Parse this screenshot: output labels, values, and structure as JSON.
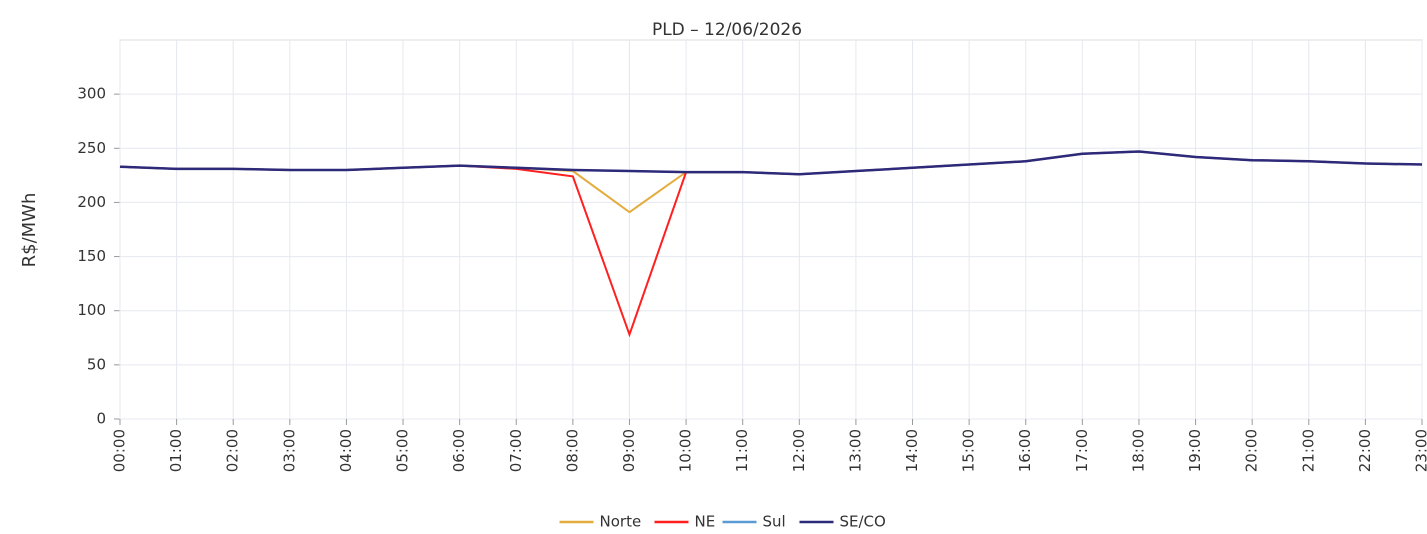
{
  "chart_data": {
    "type": "line",
    "title": "PLD – 12/06/2026",
    "ylabel": "R$/MWh",
    "categories": [
      "00:00",
      "01:00",
      "02:00",
      "03:00",
      "04:00",
      "05:00",
      "06:00",
      "07:00",
      "08:00",
      "09:00",
      "10:00",
      "11:00",
      "12:00",
      "13:00",
      "14:00",
      "15:00",
      "16:00",
      "17:00",
      "18:00",
      "19:00",
      "20:00",
      "21:00",
      "22:00",
      "23:00"
    ],
    "series": [
      {
        "name": "Norte",
        "color": "#e3ac3c",
        "values": [
          233,
          231,
          231,
          230,
          230,
          232,
          234,
          232,
          229,
          191,
          228,
          228,
          226,
          229,
          232,
          235,
          238,
          245,
          247,
          242,
          239,
          238,
          236,
          235
        ]
      },
      {
        "name": "NE",
        "color": "#ff1f1f",
        "values": [
          233,
          231,
          231,
          230,
          230,
          232,
          234,
          231,
          224,
          78,
          228,
          228,
          226,
          229,
          232,
          235,
          238,
          245,
          247,
          242,
          239,
          238,
          236,
          235
        ]
      },
      {
        "name": "Sul",
        "color": "#5b9bd5",
        "values": [
          233,
          231,
          231,
          230,
          230,
          232,
          234,
          232,
          230,
          229,
          228,
          228,
          226,
          229,
          232,
          235,
          238,
          245,
          247,
          242,
          239,
          238,
          236,
          235
        ]
      },
      {
        "name": "SE/CO",
        "color": "#2e2a7a",
        "values": [
          233,
          231,
          231,
          230,
          230,
          232,
          234,
          232,
          230,
          229,
          228,
          228,
          226,
          229,
          232,
          235,
          238,
          245,
          247,
          242,
          239,
          238,
          236,
          235
        ]
      }
    ],
    "ylim": [
      0,
      350
    ],
    "yticks": [
      0,
      50,
      100,
      150,
      200,
      250,
      300
    ],
    "grid": true,
    "legend": "bottom"
  }
}
